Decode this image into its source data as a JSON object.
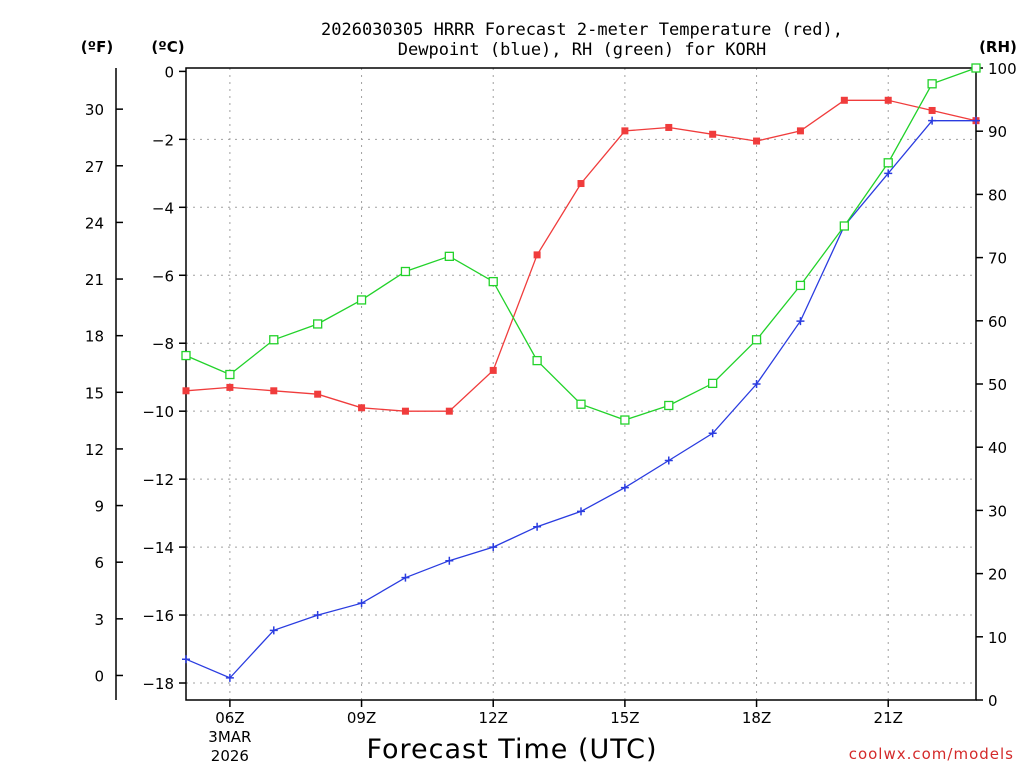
{
  "chart_data": {
    "type": "line",
    "title_line1": "2026030305 HRRR Forecast 2-meter Temperature (red),",
    "title_line2": "Dewpoint (blue), RH (green) for KORH",
    "xlabel": "Forecast Time (UTC)",
    "credit": "coolwx.com/models",
    "units": {
      "fahrenheit": "(ºF)",
      "celsius": "(ºC)",
      "rh": "(RH)"
    },
    "hours": [
      5,
      6,
      7,
      8,
      9,
      10,
      11,
      12,
      13,
      14,
      15,
      16,
      17,
      18,
      19,
      20,
      21,
      22,
      23
    ],
    "x_ticks": [
      {
        "hour": 6,
        "label": "06Z",
        "sub1": "3MAR",
        "sub2": "2026"
      },
      {
        "hour": 9,
        "label": "09Z"
      },
      {
        "hour": 12,
        "label": "12Z"
      },
      {
        "hour": 15,
        "label": "15Z"
      },
      {
        "hour": 18,
        "label": "18Z"
      },
      {
        "hour": 21,
        "label": "21Z"
      }
    ],
    "celsius_ticks": [
      0,
      -2,
      -4,
      -6,
      -8,
      -10,
      -12,
      -14,
      -16,
      -18
    ],
    "celsius_tick_labels": [
      "0",
      "−2",
      "−4",
      "−6",
      "−8",
      "−10",
      "−12",
      "−14",
      "−16",
      "−18"
    ],
    "fahrenheit_ticks": [
      30,
      27,
      24,
      21,
      18,
      15,
      12,
      9,
      6,
      3,
      0
    ],
    "rh_ticks": [
      100,
      90,
      80,
      70,
      60,
      50,
      40,
      30,
      20,
      10,
      0
    ],
    "ylim_celsius": [
      -18.5,
      0.1
    ],
    "ylim_rh": [
      0,
      100
    ],
    "series": [
      {
        "name": "Temperature",
        "color": "#f03c3c",
        "marker": "filled-square",
        "axis": "celsius",
        "values": [
          -9.4,
          -9.3,
          -9.4,
          -9.5,
          -9.9,
          -10.0,
          -10.0,
          -8.8,
          -5.4,
          -3.3,
          -1.75,
          -1.65,
          -1.85,
          -2.05,
          -1.75,
          -0.85,
          -0.85,
          -1.15,
          -1.45
        ]
      },
      {
        "name": "Dewpoint",
        "color": "#2a3ce0",
        "marker": "plus",
        "axis": "celsius",
        "values": [
          -17.3,
          -17.85,
          -16.45,
          -16.0,
          -15.65,
          -14.9,
          -14.4,
          -14.0,
          -13.4,
          -12.95,
          -12.25,
          -11.45,
          -10.65,
          -9.2,
          -7.35,
          -4.55,
          -3.0,
          -1.45,
          -1.45
        ]
      },
      {
        "name": "RH",
        "color": "#22d22a",
        "marker": "open-square",
        "axis": "rh",
        "values": [
          54.5,
          51.5,
          57.0,
          59.5,
          63.3,
          67.8,
          70.2,
          66.2,
          53.7,
          46.8,
          44.3,
          46.6,
          50.1,
          57.0,
          65.6,
          75.0,
          85.0,
          97.5,
          100.0
        ]
      }
    ]
  }
}
